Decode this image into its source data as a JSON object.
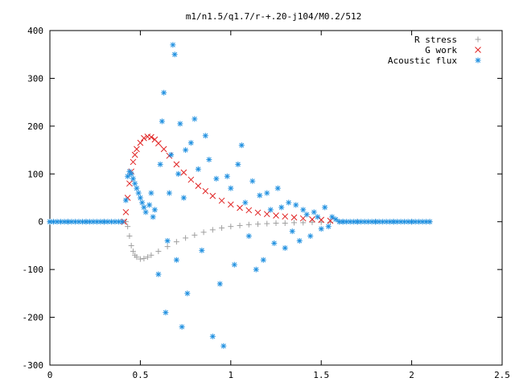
{
  "chart_data": {
    "type": "scatter",
    "title": "m1/n1.5/q1.7/r-+.20-j104/M0.2/512",
    "xlabel": "",
    "ylabel": "",
    "xlim": [
      0,
      2.5
    ],
    "ylim": [
      -300,
      400
    ],
    "x_ticks": [
      0,
      0.5,
      1,
      1.5,
      2,
      2.5
    ],
    "x_tick_labels": [
      "0",
      "0.5",
      "1",
      "1.5",
      "2",
      "2.5"
    ],
    "y_ticks": [
      -300,
      -200,
      -100,
      0,
      100,
      200,
      300,
      400
    ],
    "y_tick_labels": [
      "-300",
      "-200",
      "-100",
      "0",
      "100",
      "200",
      "300",
      "400"
    ],
    "grid": false,
    "legend_position": "top-right",
    "series": [
      {
        "name": "R stress",
        "marker": "plus",
        "color": "#a0a0a0",
        "x": [
          0.0,
          0.1,
          0.2,
          0.3,
          0.4,
          0.42,
          0.43,
          0.44,
          0.45,
          0.46,
          0.47,
          0.48,
          0.5,
          0.52,
          0.54,
          0.56,
          0.6,
          0.65,
          0.7,
          0.75,
          0.8,
          0.85,
          0.9,
          0.95,
          1.0,
          1.05,
          1.1,
          1.15,
          1.2,
          1.25,
          1.3,
          1.35,
          1.4,
          1.45,
          1.5,
          1.55,
          1.6,
          1.7,
          1.8,
          2.0,
          2.1
        ],
        "y": [
          0,
          0,
          0,
          0,
          0,
          0,
          -10,
          -30,
          -50,
          -62,
          -70,
          -74,
          -78,
          -77,
          -74,
          -70,
          -62,
          -52,
          -42,
          -34,
          -28,
          -22,
          -17,
          -13,
          -10,
          -8,
          -6,
          -5,
          -4,
          -3,
          -3,
          -2,
          -2,
          -1,
          -1,
          -1,
          0,
          0,
          0,
          0,
          0
        ]
      },
      {
        "name": "G work",
        "marker": "cross",
        "color": "#e02020",
        "x": [
          0.41,
          0.42,
          0.43,
          0.44,
          0.45,
          0.46,
          0.47,
          0.48,
          0.5,
          0.52,
          0.54,
          0.56,
          0.58,
          0.6,
          0.63,
          0.66,
          0.7,
          0.74,
          0.78,
          0.82,
          0.86,
          0.9,
          0.95,
          1.0,
          1.05,
          1.1,
          1.15,
          1.2,
          1.25,
          1.3,
          1.35,
          1.4,
          1.45,
          1.5,
          1.55
        ],
        "y": [
          0,
          20,
          50,
          80,
          105,
          125,
          140,
          152,
          165,
          175,
          178,
          177,
          172,
          164,
          152,
          138,
          120,
          103,
          88,
          75,
          64,
          54,
          44,
          36,
          29,
          24,
          19,
          16,
          13,
          11,
          9,
          7,
          5,
          4,
          2
        ]
      },
      {
        "name": "Acoustic flux",
        "marker": "star",
        "color": "#2090e0",
        "x": [
          0.0,
          0.1,
          0.2,
          0.3,
          0.4,
          0.42,
          0.43,
          0.44,
          0.45,
          0.46,
          0.47,
          0.48,
          0.49,
          0.5,
          0.51,
          0.52,
          0.53,
          0.55,
          0.56,
          0.57,
          0.58,
          0.6,
          0.61,
          0.62,
          0.63,
          0.64,
          0.65,
          0.66,
          0.67,
          0.68,
          0.69,
          0.7,
          0.71,
          0.72,
          0.73,
          0.74,
          0.75,
          0.76,
          0.78,
          0.8,
          0.82,
          0.84,
          0.86,
          0.88,
          0.9,
          0.92,
          0.94,
          0.96,
          0.98,
          1.0,
          1.02,
          1.04,
          1.06,
          1.08,
          1.1,
          1.12,
          1.14,
          1.16,
          1.18,
          1.2,
          1.22,
          1.24,
          1.26,
          1.28,
          1.3,
          1.32,
          1.34,
          1.36,
          1.38,
          1.4,
          1.42,
          1.44,
          1.46,
          1.48,
          1.5,
          1.52,
          1.54,
          1.56,
          1.58,
          1.6,
          1.62,
          1.7,
          1.8,
          1.9,
          2.0,
          2.1
        ],
        "y": [
          0,
          0,
          0,
          0,
          0,
          45,
          95,
          105,
          100,
          90,
          80,
          70,
          60,
          50,
          40,
          30,
          20,
          35,
          60,
          10,
          25,
          -110,
          120,
          210,
          270,
          -190,
          -40,
          60,
          140,
          370,
          350,
          -80,
          100,
          205,
          -220,
          50,
          150,
          -150,
          165,
          215,
          110,
          -60,
          180,
          130,
          -240,
          90,
          -130,
          -260,
          95,
          70,
          -90,
          120,
          160,
          40,
          -30,
          85,
          -100,
          55,
          -80,
          60,
          25,
          -45,
          70,
          30,
          -55,
          40,
          -20,
          35,
          -40,
          25,
          15,
          -30,
          20,
          10,
          -15,
          30,
          -10,
          10,
          5,
          0,
          0,
          0,
          0,
          0,
          0,
          0
        ]
      }
    ]
  }
}
